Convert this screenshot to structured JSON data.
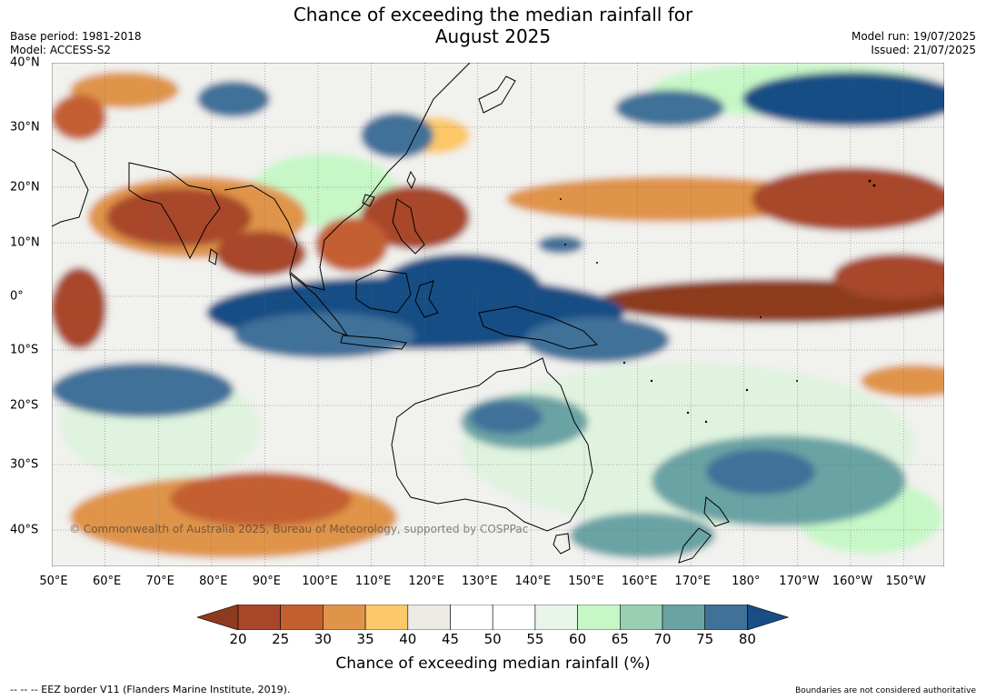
{
  "header": {
    "title_line1": "Chance of exceeding the median rainfall for",
    "title_line2": "August 2025",
    "base_period": "Base period: 1981-2018",
    "model": "Model: ACCESS-S2",
    "model_run": "Model run: 19/07/2025",
    "issued": "Issued: 21/07/2025"
  },
  "map": {
    "copyright": "© Commonwealth of Australia 2025, Bureau of Meteorology, supported by COSPPac",
    "lon_labels": [
      "50°E",
      "60°E",
      "70°E",
      "80°E",
      "90°E",
      "100°E",
      "110°E",
      "120°E",
      "130°E",
      "140°E",
      "150°E",
      "160°E",
      "170°E",
      "180°",
      "170°W",
      "160°W",
      "150°W"
    ],
    "lat_labels": [
      "40°N",
      "30°N",
      "20°N",
      "10°N",
      "0°",
      "10°S",
      "20°S",
      "30°S",
      "40°S"
    ]
  },
  "colorbar": {
    "label": "Chance of exceeding median rainfall (%)",
    "ticks": [
      "20",
      "25",
      "30",
      "35",
      "40",
      "45",
      "50",
      "55",
      "60",
      "65",
      "70",
      "75",
      "80"
    ],
    "colors": [
      "#8e3a1e",
      "#a8462a",
      "#c45f30",
      "#e0944a",
      "#fcc868",
      "#ecebe6",
      "#ffffff",
      "#ffffff",
      "#e8f5e8",
      "#c7f7c7",
      "#99cfb3",
      "#6aa3a4",
      "#3f7199",
      "#184d85"
    ]
  },
  "footer": {
    "eez_note": "--  --  -- EEZ border V11 (Flanders Marine Institute, 2019).",
    "boundaries_note": "Boundaries are not considered authoritative"
  }
}
